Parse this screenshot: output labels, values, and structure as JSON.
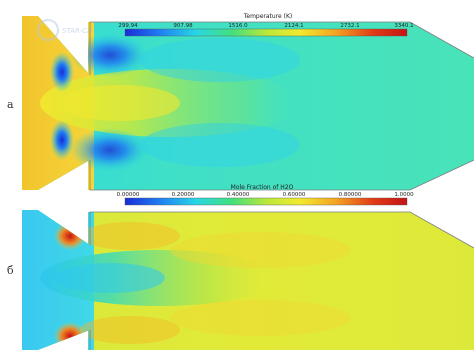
{
  "watermark_text": "STAR-CD",
  "panels": [
    {
      "id": "a",
      "label": "а",
      "colorbar": {
        "title": "Temperature (K)",
        "ticks": [
          "299.94",
          "907.98",
          "1516.0",
          "2124.1",
          "2732.1",
          "3340.1"
        ]
      },
      "field": "temperature"
    },
    {
      "id": "b",
      "label": "б",
      "colorbar": {
        "title": "Mole Fraction of H2O",
        "ticks": [
          "0.00000",
          "0.20000",
          "0.40000",
          "0.60000",
          "0.80000",
          "1.0000"
        ]
      },
      "field": "h2o"
    }
  ],
  "colormap": [
    "#1a2bd8",
    "#1f7df2",
    "#27d6e6",
    "#43e07d",
    "#b9e83a",
    "#f2ea2e",
    "#f4a321",
    "#e23b17",
    "#c41414"
  ]
}
